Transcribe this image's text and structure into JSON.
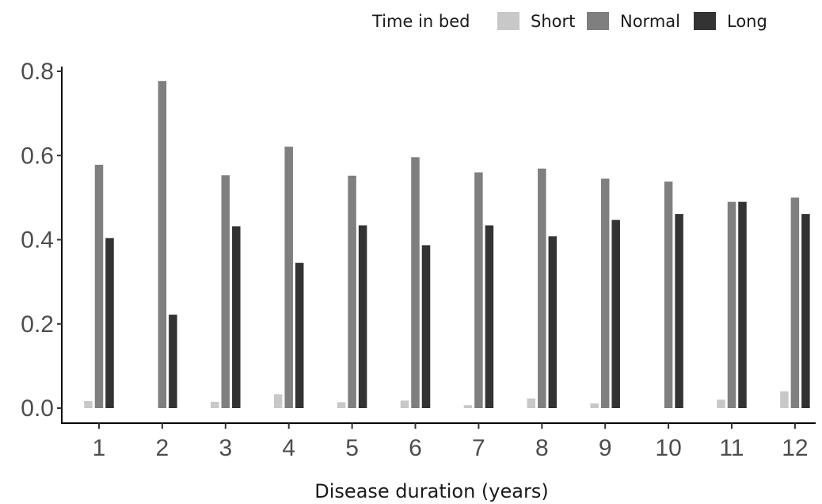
{
  "chart_data": {
    "type": "bar",
    "title": "",
    "xlabel": "Disease duration (years)",
    "ylabel": "",
    "categories": [
      "1",
      "2",
      "3",
      "4",
      "5",
      "6",
      "7",
      "8",
      "9",
      "10",
      "11",
      "12"
    ],
    "yticks": [
      "0.0",
      "0.2",
      "0.4",
      "0.6",
      "0.8"
    ],
    "ylim": [
      0,
      0.8
    ],
    "grid": false,
    "legend": {
      "title": "Time in bed",
      "placement": "top-right"
    },
    "series": [
      {
        "name": "Short",
        "color": "#c8c8c8",
        "values": [
          0.017,
          0.0,
          0.015,
          0.033,
          0.014,
          0.018,
          0.007,
          0.023,
          0.011,
          0.0,
          0.02,
          0.04
        ]
      },
      {
        "name": "Normal",
        "color": "#7f7f7f",
        "values": [
          0.578,
          0.777,
          0.553,
          0.621,
          0.552,
          0.596,
          0.56,
          0.569,
          0.545,
          0.538,
          0.49,
          0.5
        ]
      },
      {
        "name": "Long",
        "color": "#333333",
        "values": [
          0.404,
          0.222,
          0.432,
          0.345,
          0.434,
          0.387,
          0.434,
          0.408,
          0.447,
          0.461,
          0.49,
          0.461
        ]
      }
    ]
  }
}
